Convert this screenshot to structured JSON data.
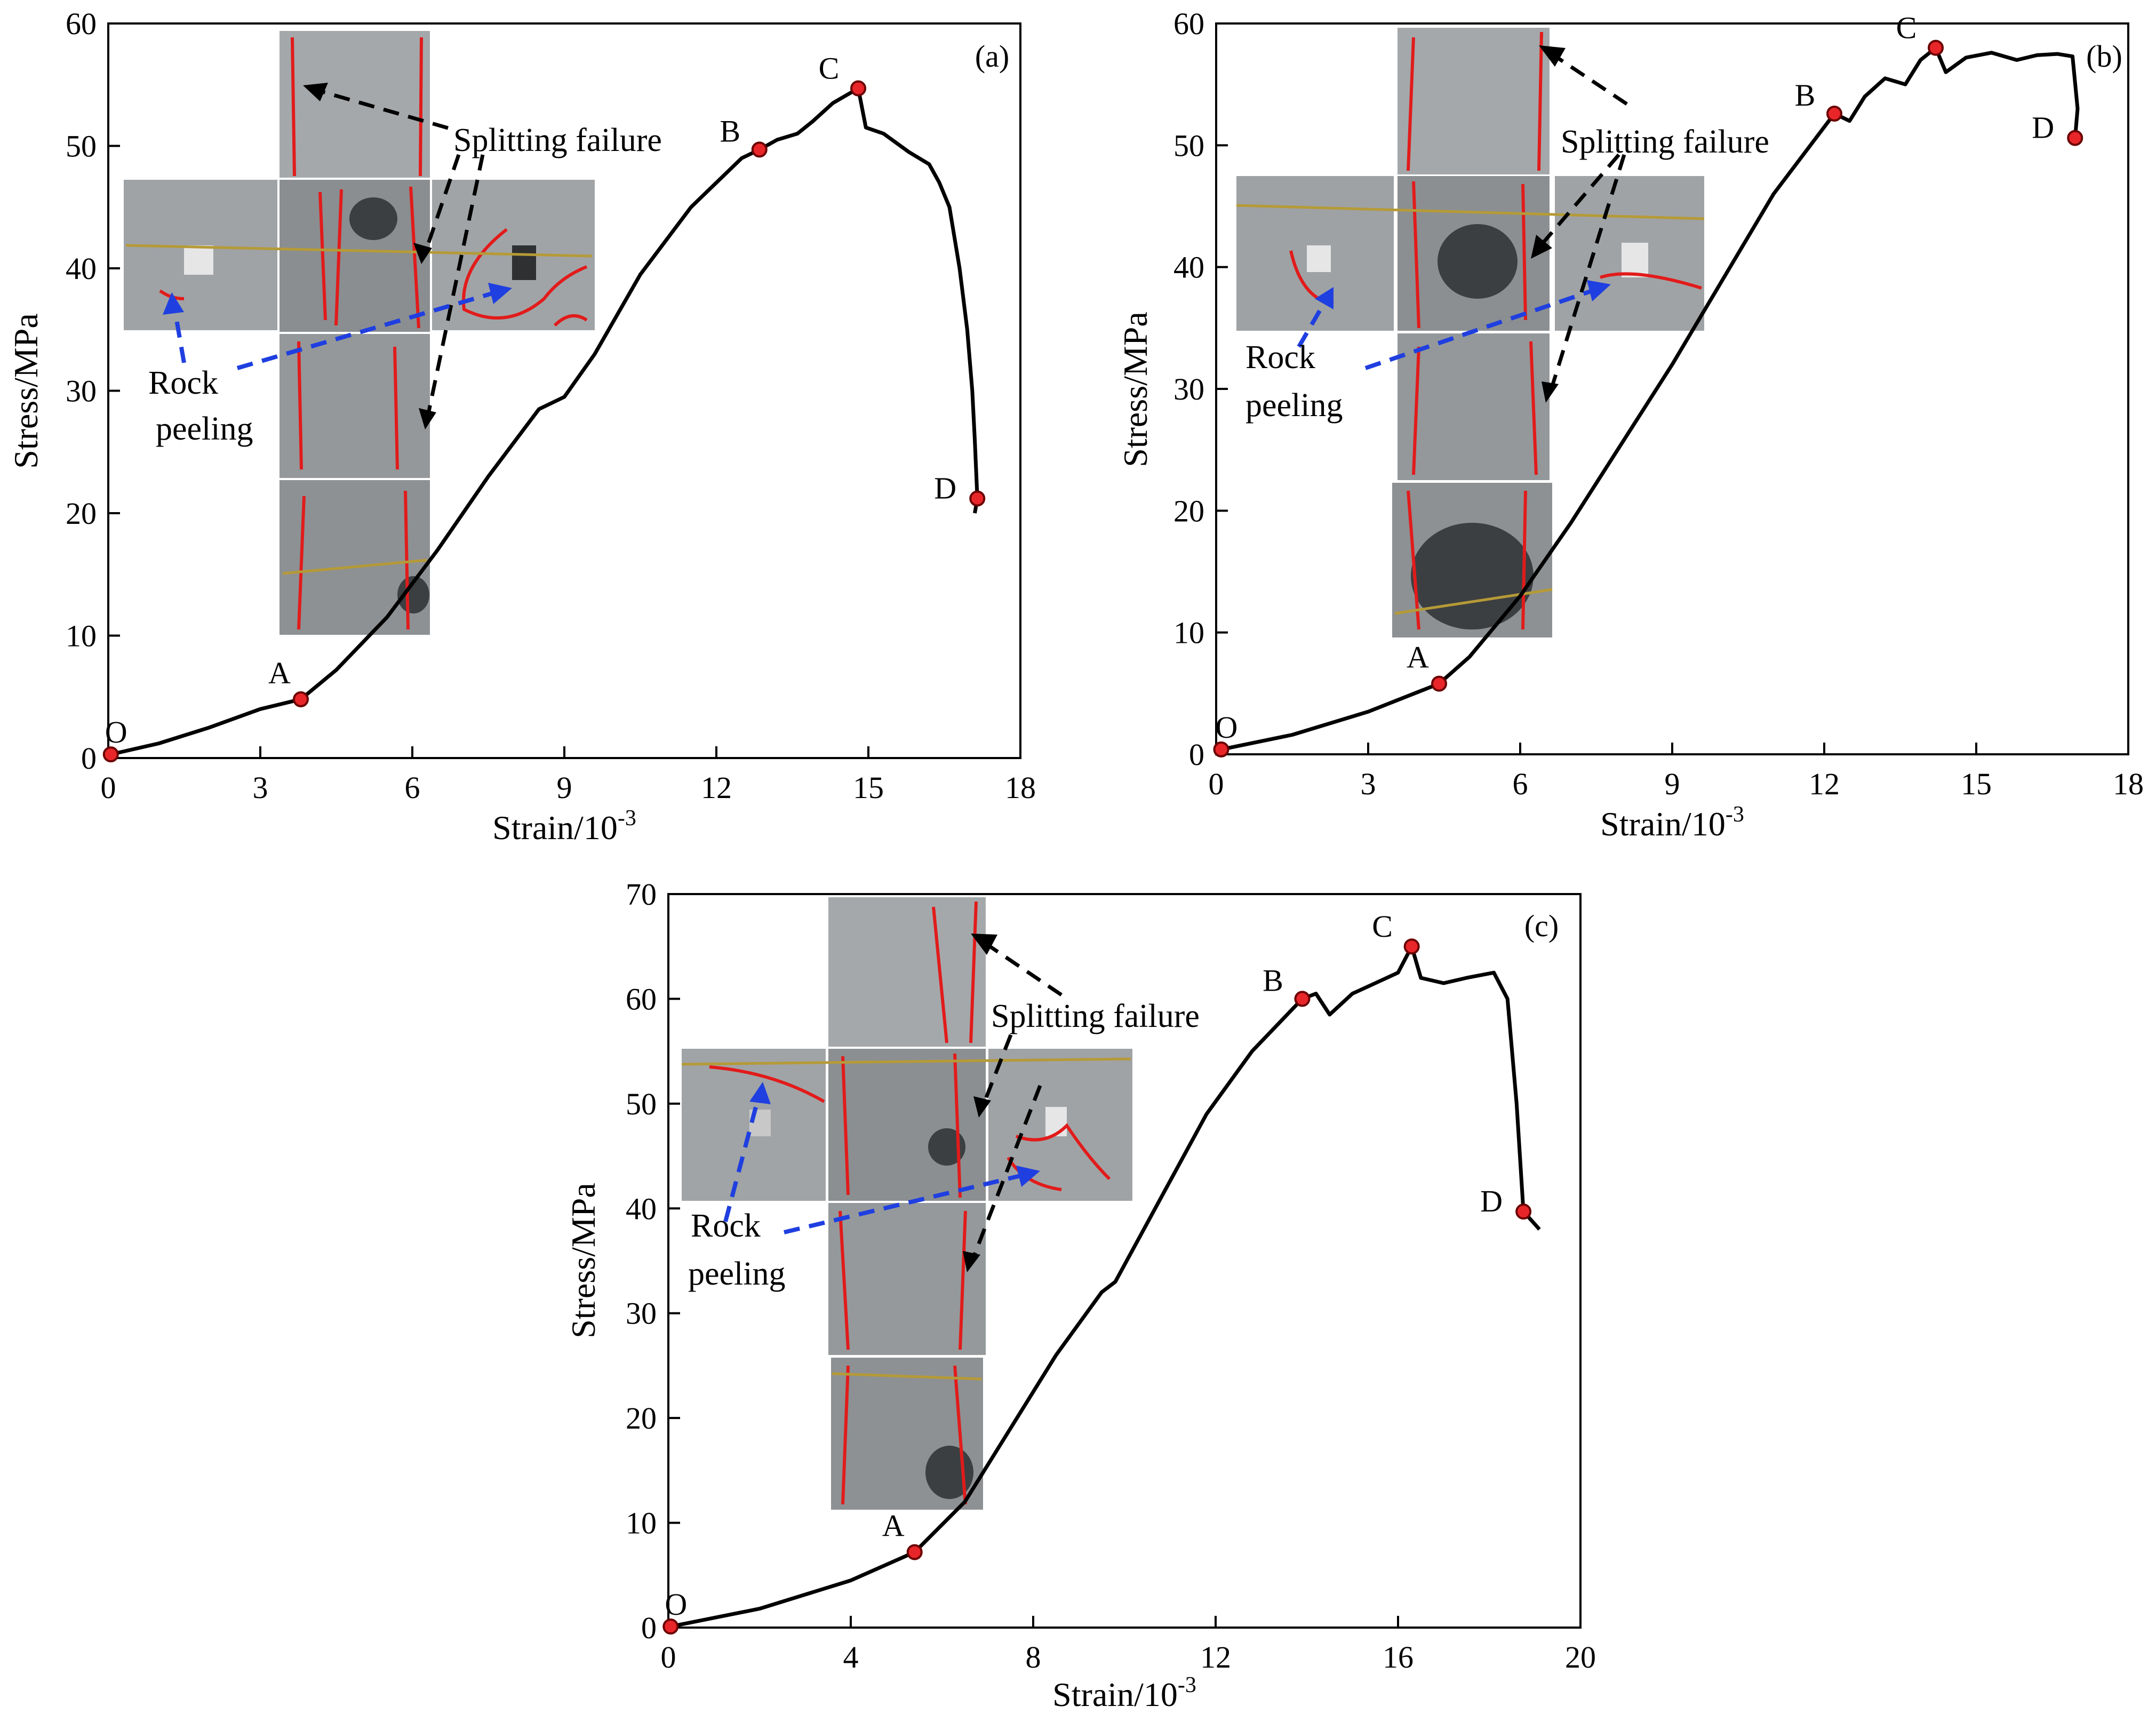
{
  "figure": {
    "description_colors": {
      "curve": "#000000",
      "point_fill": "#e8262a",
      "point_stroke": "#6b0000",
      "black_arrow": "#000000",
      "blue_arrow": "#1f3fe0",
      "crack_line": "#e21b1b",
      "specimen_gray": "#8f9294"
    }
  },
  "chart_data": [
    {
      "id": "a",
      "type": "line",
      "panel_label": "(a)",
      "xlabel": "Strain/10",
      "xlabel_exp": "-3",
      "ylabel": "Stress/MPa",
      "xlim": [
        0,
        18
      ],
      "ylim": [
        0,
        60
      ],
      "xticks": [
        0,
        3,
        6,
        9,
        12,
        15,
        18
      ],
      "yticks": [
        0,
        10,
        20,
        30,
        40,
        50,
        60
      ],
      "annotations": {
        "splitting": "Splitting failure",
        "rock": "Rock",
        "peeling": "peeling"
      },
      "series": [
        {
          "name": "stress-strain",
          "x": [
            0.05,
            1.0,
            2.0,
            3.0,
            3.8,
            4.5,
            5.5,
            6.5,
            7.5,
            8.5,
            9.0,
            9.6,
            10.5,
            11.5,
            12.5,
            12.85,
            13.2,
            13.6,
            13.9,
            14.3,
            14.8,
            14.95,
            15.3,
            15.8,
            16.2,
            16.4,
            16.6,
            16.8,
            16.95,
            17.05,
            17.1,
            17.15,
            17.1
          ],
          "y": [
            0.3,
            1.2,
            2.5,
            4.0,
            4.8,
            7.2,
            11.5,
            17.0,
            23.0,
            28.5,
            29.5,
            33.0,
            39.5,
            45.0,
            49.0,
            49.7,
            50.5,
            51.0,
            52.0,
            53.5,
            54.7,
            51.5,
            51.0,
            49.5,
            48.5,
            47.0,
            45.0,
            40.0,
            35.0,
            30.0,
            26.0,
            21.2,
            20.0
          ]
        }
      ],
      "points": [
        {
          "label": "O",
          "x": 0.05,
          "y": 0.3
        },
        {
          "label": "A",
          "x": 3.8,
          "y": 4.8
        },
        {
          "label": "B",
          "x": 12.85,
          "y": 49.7
        },
        {
          "label": "C",
          "x": 14.8,
          "y": 54.7
        },
        {
          "label": "D",
          "x": 17.15,
          "y": 21.2
        }
      ]
    },
    {
      "id": "b",
      "type": "line",
      "panel_label": "(b)",
      "xlabel": "Strain/10",
      "xlabel_exp": "-3",
      "ylabel": "Stress/MPa",
      "xlim": [
        0,
        18
      ],
      "ylim": [
        0,
        60
      ],
      "xticks": [
        0,
        3,
        6,
        9,
        12,
        15,
        18
      ],
      "yticks": [
        0,
        10,
        20,
        30,
        40,
        50,
        60
      ],
      "annotations": {
        "splitting": "Splitting failure",
        "rock": "Rock",
        "peeling": "peeling"
      },
      "series": [
        {
          "name": "stress-strain",
          "x": [
            0.1,
            1.5,
            3.0,
            4.4,
            5.0,
            6.0,
            7.0,
            8.0,
            9.0,
            10.0,
            11.0,
            12.2,
            12.5,
            12.8,
            13.2,
            13.6,
            13.9,
            14.2,
            14.4,
            14.8,
            15.3,
            15.8,
            16.2,
            16.6,
            16.9,
            17.0,
            16.95
          ],
          "y": [
            0.4,
            1.6,
            3.5,
            5.8,
            8.0,
            13.0,
            19.0,
            25.5,
            32.0,
            39.0,
            46.0,
            52.6,
            52.0,
            54.0,
            55.5,
            55.0,
            57.0,
            58.0,
            56.0,
            57.2,
            57.6,
            57.0,
            57.4,
            57.5,
            57.3,
            53.0,
            50.6
          ]
        }
      ],
      "points": [
        {
          "label": "O",
          "x": 0.1,
          "y": 0.4
        },
        {
          "label": "A",
          "x": 4.4,
          "y": 5.8
        },
        {
          "label": "B",
          "x": 12.2,
          "y": 52.6
        },
        {
          "label": "C",
          "x": 14.2,
          "y": 58.0
        },
        {
          "label": "D",
          "x": 16.95,
          "y": 50.6
        }
      ]
    },
    {
      "id": "c",
      "type": "line",
      "panel_label": "(c)",
      "xlabel": "Strain/10",
      "xlabel_exp": "-3",
      "ylabel": "Stress/MPa",
      "xlim": [
        0,
        20
      ],
      "ylim": [
        0,
        70
      ],
      "xticks": [
        0,
        4,
        8,
        12,
        16,
        20
      ],
      "yticks": [
        0,
        10,
        20,
        30,
        40,
        50,
        60,
        70
      ],
      "annotations": {
        "splitting": "Splitting failure",
        "rock": "Rock",
        "peeling": "peeling"
      },
      "series": [
        {
          "name": "stress-strain",
          "x": [
            0.05,
            2.0,
            4.0,
            5.4,
            6.5,
            7.5,
            8.5,
            9.5,
            9.8,
            10.8,
            11.8,
            12.8,
            13.9,
            14.2,
            14.5,
            15.0,
            15.5,
            16.0,
            16.3,
            16.5,
            17.0,
            17.5,
            18.1,
            18.4,
            18.6,
            18.75,
            19.0,
            19.1
          ],
          "y": [
            0.1,
            1.8,
            4.5,
            7.2,
            12.0,
            19.0,
            26.0,
            32.0,
            33.0,
            41.0,
            49.0,
            55.0,
            60.0,
            60.5,
            58.5,
            60.5,
            61.5,
            62.5,
            65.0,
            62.0,
            61.5,
            62.0,
            62.5,
            60.0,
            50.0,
            39.7,
            38.5,
            38.0
          ]
        }
      ],
      "points": [
        {
          "label": "O",
          "x": 0.05,
          "y": 0.1
        },
        {
          "label": "A",
          "x": 5.4,
          "y": 7.2
        },
        {
          "label": "B",
          "x": 13.9,
          "y": 60.0
        },
        {
          "label": "C",
          "x": 16.3,
          "y": 65.0
        },
        {
          "label": "D",
          "x": 18.75,
          "y": 39.7
        }
      ]
    }
  ]
}
